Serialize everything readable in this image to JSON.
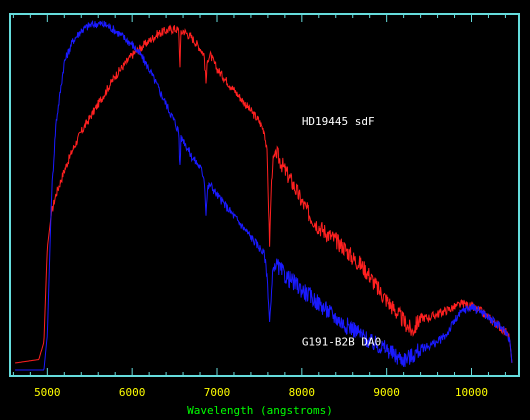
{
  "chart_data": {
    "type": "line",
    "title": "",
    "xlabel": "Wavelength (angstroms)",
    "ylabel": "",
    "xlim": [
      4560,
      10560
    ],
    "ylim": [
      0,
      1.0
    ],
    "xticks": [
      "5000",
      "6000",
      "7000",
      "8000",
      "9000",
      "10000"
    ],
    "xtick_values": [
      5000,
      6000,
      7000,
      8000,
      9000,
      10000
    ],
    "grid": false,
    "colors": {
      "frame": "#66dddd",
      "ticks": "#ffff00",
      "xlabel": "#00ff00",
      "text": "#ffffff"
    },
    "series": [
      {
        "name": "HD19445 sdF",
        "color": "#ff2020",
        "x": [
          4620,
          4900,
          4960,
          5000,
          5050,
          5100,
          5200,
          5300,
          5400,
          5500,
          5600,
          5700,
          5800,
          5900,
          6000,
          6100,
          6200,
          6300,
          6400,
          6500,
          6550,
          6562,
          6575,
          6600,
          6700,
          6800,
          6850,
          6870,
          6890,
          6920,
          7000,
          7100,
          7200,
          7300,
          7400,
          7500,
          7560,
          7590,
          7620,
          7640,
          7660,
          7700,
          7800,
          7900,
          8000,
          8100,
          8200,
          8300,
          8400,
          8500,
          8600,
          8700,
          8800,
          8900,
          9000,
          9100,
          9200,
          9300,
          9350,
          9400,
          9500,
          9600,
          9700,
          9800,
          9900,
          10000,
          10100,
          10200,
          10300,
          10400,
          10450,
          10480
        ],
        "y": [
          0.02,
          0.03,
          0.08,
          0.35,
          0.45,
          0.5,
          0.57,
          0.63,
          0.68,
          0.72,
          0.76,
          0.8,
          0.84,
          0.87,
          0.9,
          0.92,
          0.94,
          0.96,
          0.97,
          0.975,
          0.97,
          0.86,
          0.96,
          0.97,
          0.95,
          0.92,
          0.9,
          0.82,
          0.89,
          0.9,
          0.86,
          0.83,
          0.8,
          0.77,
          0.74,
          0.71,
          0.68,
          0.62,
          0.36,
          0.52,
          0.6,
          0.62,
          0.57,
          0.53,
          0.48,
          0.44,
          0.41,
          0.39,
          0.37,
          0.35,
          0.32,
          0.3,
          0.27,
          0.23,
          0.2,
          0.17,
          0.14,
          0.11,
          0.13,
          0.15,
          0.15,
          0.16,
          0.17,
          0.18,
          0.19,
          0.18,
          0.17,
          0.15,
          0.13,
          0.11,
          0.09,
          0.01
        ]
      },
      {
        "name": "G191-B2B DA0",
        "color": "#1a1aff",
        "x": [
          4620,
          4900,
          4960,
          5000,
          5050,
          5100,
          5200,
          5300,
          5400,
          5500,
          5600,
          5700,
          5800,
          5900,
          6000,
          6100,
          6200,
          6300,
          6400,
          6500,
          6550,
          6562,
          6575,
          6600,
          6700,
          6800,
          6850,
          6870,
          6890,
          6920,
          7000,
          7100,
          7200,
          7300,
          7400,
          7500,
          7560,
          7590,
          7620,
          7640,
          7660,
          7700,
          7800,
          7900,
          8000,
          8100,
          8200,
          8300,
          8400,
          8500,
          8600,
          8700,
          8800,
          8900,
          9000,
          9100,
          9200,
          9300,
          9350,
          9400,
          9500,
          9600,
          9700,
          9800,
          9900,
          10000,
          10100,
          10200,
          10300,
          10400,
          10450,
          10480
        ],
        "y": [
          0.0,
          0.0,
          0.0,
          0.1,
          0.5,
          0.7,
          0.88,
          0.94,
          0.97,
          0.985,
          0.99,
          0.985,
          0.97,
          0.95,
          0.93,
          0.9,
          0.86,
          0.81,
          0.76,
          0.71,
          0.68,
          0.57,
          0.66,
          0.66,
          0.61,
          0.58,
          0.55,
          0.45,
          0.52,
          0.53,
          0.5,
          0.47,
          0.44,
          0.41,
          0.38,
          0.35,
          0.33,
          0.27,
          0.14,
          0.2,
          0.29,
          0.3,
          0.27,
          0.25,
          0.23,
          0.21,
          0.19,
          0.17,
          0.15,
          0.13,
          0.12,
          0.1,
          0.08,
          0.07,
          0.06,
          0.04,
          0.03,
          0.04,
          0.05,
          0.06,
          0.07,
          0.08,
          0.1,
          0.14,
          0.17,
          0.18,
          0.17,
          0.15,
          0.13,
          0.11,
          0.09,
          0.01
        ]
      }
    ],
    "annotations": [
      {
        "text": "HD19445 sdF",
        "x": 8000,
        "y": 0.7
      },
      {
        "text": "G191-B2B DA0",
        "x": 8000,
        "y": 0.07
      }
    ]
  }
}
